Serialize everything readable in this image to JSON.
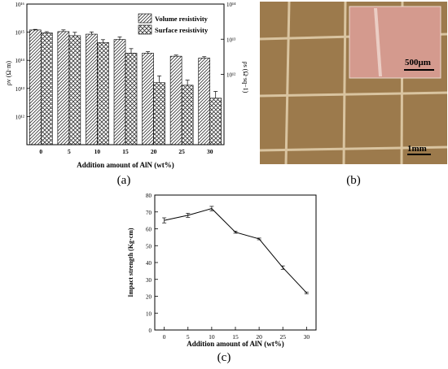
{
  "panels": {
    "a": "(a)",
    "b": "(b)",
    "c": "(c)"
  },
  "chart_data": [
    {
      "type": "bar",
      "xlabel": "Addition amount of AlN (wt%)",
      "ylabel": "ρv (Ω·m)",
      "ylabel_right": "ρs (Ω·sq−1)",
      "categories": [
        "0",
        "5",
        "10",
        "15",
        "20",
        "25",
        "30"
      ],
      "yscale": "log",
      "ylim": [
        100000000000.0,
        1e+16
      ],
      "yticks_left": [
        "10¹²",
        "10¹³",
        "10¹⁴",
        "10¹⁵",
        "10¹⁶"
      ],
      "yticks_left_values": [
        12,
        13,
        14,
        15,
        16
      ],
      "ylim_right_exp": [
        10,
        14
      ],
      "yticks_right": [
        "10¹²",
        "10¹³",
        "10¹⁴"
      ],
      "yticks_right_values": [
        12,
        13,
        14
      ],
      "legend_position": "top-right",
      "series": [
        {
          "name": "Volume resistivity",
          "pattern": "diagonal-hatch",
          "values": [
            1200000000000000.0,
            1050000000000000.0,
            850000000000000.0,
            550000000000000.0,
            180000000000000.0,
            140000000000000.0,
            120000000000000.0
          ],
          "errors_log": [
            0.02,
            0.06,
            0.08,
            0.09,
            0.05,
            0.04,
            0.05
          ]
        },
        {
          "name": "Surface resistivity",
          "pattern": "cross-hatch",
          "values": [
            950000000000000.0,
            750000000000000.0,
            430000000000000.0,
            180000000000000.0,
            16000000000000.0,
            13000000000000.0,
            4500000000000.0
          ],
          "errors_log": [
            0.04,
            0.12,
            0.1,
            0.16,
            0.24,
            0.18,
            0.24
          ]
        }
      ]
    },
    {
      "type": "line",
      "xlabel": "Addition amount of AlN (wt%)",
      "ylabel": "Impact strength (Kg·cm)",
      "x": [
        0,
        5,
        10,
        15,
        20,
        25,
        30
      ],
      "y": [
        65,
        68,
        72,
        58,
        54,
        37,
        22
      ],
      "errors": [
        1.5,
        1.2,
        1.3,
        0.6,
        0.5,
        1.0,
        0.5
      ],
      "xlim": [
        -2,
        32
      ],
      "ylim": [
        0,
        80
      ],
      "xticks": [
        0,
        5,
        10,
        15,
        20,
        25,
        30
      ],
      "yticks": [
        0,
        10,
        20,
        30,
        40,
        50,
        60,
        70,
        80
      ]
    }
  ],
  "photo": {
    "scale_bar": "1mm",
    "inset_scale_bar": "500μm",
    "background_color": "#9c7a4c",
    "grid_line_color": "#d9c4a0",
    "inset_color": "#d49a8e"
  }
}
